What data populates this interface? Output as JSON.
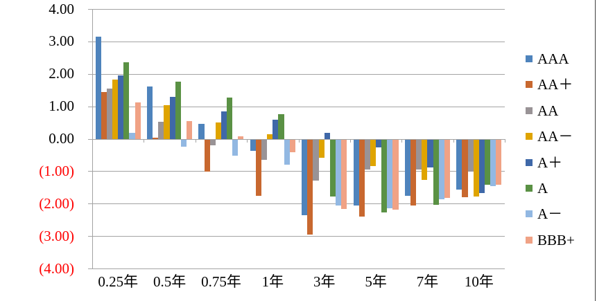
{
  "chart_data": {
    "type": "bar",
    "title": "",
    "xlabel": "",
    "ylabel": "",
    "categories": [
      "0.25年",
      "0.5年",
      "0.75年",
      "1年",
      "3年",
      "5年",
      "7年",
      "10年"
    ],
    "series": [
      {
        "name": "AAA",
        "color": "#4E83BC",
        "values": [
          3.15,
          1.62,
          0.46,
          -0.36,
          -2.33,
          -2.03,
          -1.73,
          -1.54
        ]
      },
      {
        "name": "AA＋",
        "color": "#C8682F",
        "values": [
          1.43,
          0.03,
          -1.0,
          -1.73,
          -2.93,
          -2.38,
          -2.03,
          -1.79
        ]
      },
      {
        "name": "AA",
        "color": "#999396",
        "values": [
          1.54,
          0.52,
          -0.18,
          -0.63,
          -1.26,
          -0.93,
          -0.93,
          -0.99
        ]
      },
      {
        "name": "AA－",
        "color": "#DFA400",
        "values": [
          1.83,
          1.04,
          0.5,
          0.13,
          -0.57,
          -0.83,
          -1.24,
          -1.76
        ]
      },
      {
        "name": "A＋",
        "color": "#3F68A8",
        "values": [
          1.96,
          1.29,
          0.85,
          0.58,
          0.18,
          -0.25,
          -0.86,
          -1.65
        ]
      },
      {
        "name": "A",
        "color": "#5A9144",
        "values": [
          2.35,
          1.77,
          1.26,
          0.75,
          -1.76,
          -2.26,
          -2.02,
          -1.39
        ]
      },
      {
        "name": "A－",
        "color": "#92B8E2",
        "values": [
          0.18,
          -0.22,
          -0.51,
          -0.78,
          -2.04,
          -2.12,
          -1.84,
          -1.43
        ]
      },
      {
        "name": "BBB+",
        "color": "#F0A285",
        "values": [
          1.12,
          0.55,
          0.08,
          -0.39,
          -2.15,
          -2.16,
          -1.81,
          -1.4
        ]
      }
    ],
    "ylim": [
      -4,
      4
    ],
    "ytick_step": 1.0,
    "ytick_labels": [
      "4.00",
      "3.00",
      "2.00",
      "1.00",
      "0.00",
      "(1.00)",
      "(2.00)",
      "(3.00)",
      "(4.00)"
    ],
    "negative_tick_color": "#FF0000",
    "positive_tick_color": "#000000",
    "gridline_color": "#A3A3A3",
    "grid": true,
    "legend_position": "right"
  }
}
